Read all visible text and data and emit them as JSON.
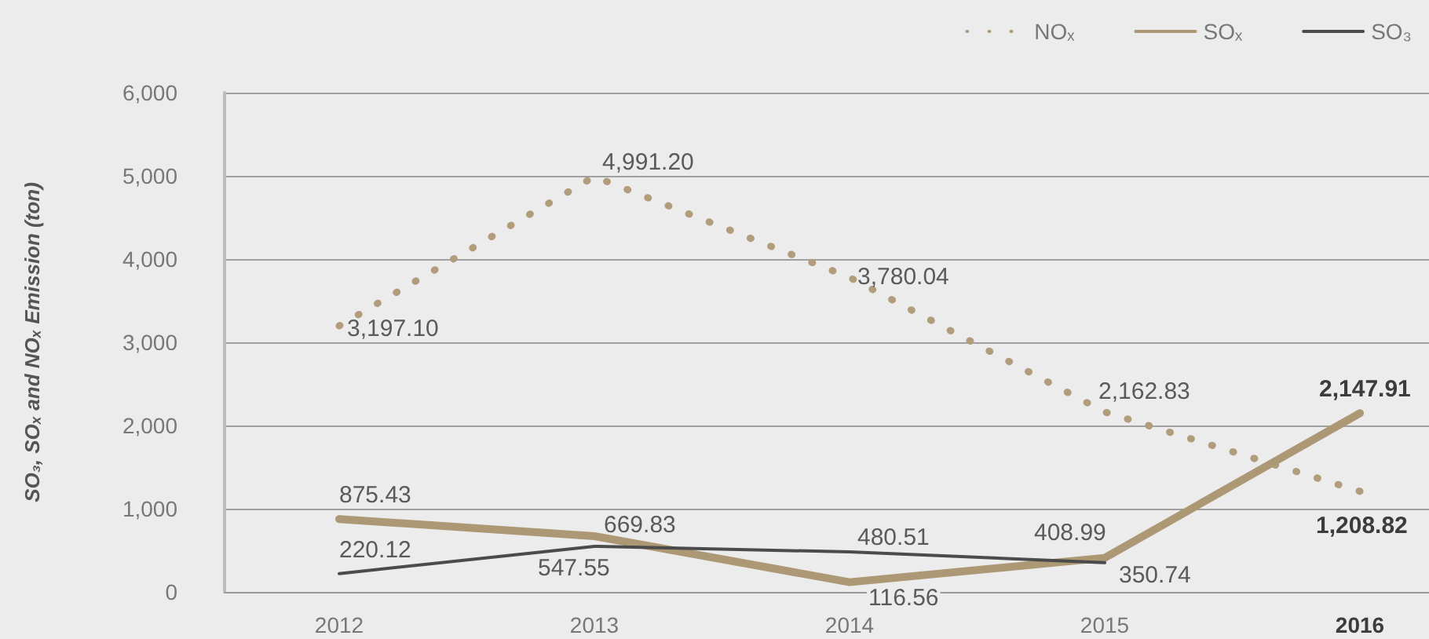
{
  "chart_data": {
    "type": "line",
    "ylabel": "SO₃, SOₓ and NOₓ Emission (ton)",
    "categories": [
      "2012",
      "2013",
      "2014",
      "2015",
      "2016"
    ],
    "series": [
      {
        "name": "NOₓ",
        "color": "#b19c7b",
        "line_style": "dotted",
        "values": [
          3197.1,
          4991.2,
          3780.04,
          2162.83,
          1208.82
        ],
        "value_labels": [
          "3,197.10",
          "4,991.20",
          "3,780.04",
          "2,162.83",
          "1,208.82"
        ]
      },
      {
        "name": "SOₓ",
        "color": "#ad9876",
        "line_style": "solid",
        "values": [
          875.43,
          669.83,
          116.56,
          408.99,
          2147.91
        ],
        "value_labels": [
          "875.43",
          "669.83",
          "116.56",
          "408.99",
          "2,147.91"
        ]
      },
      {
        "name": "SO₃",
        "color": "#4b4b4b",
        "line_style": "solid",
        "values": [
          220.12,
          547.55,
          480.51,
          350.74,
          null
        ],
        "value_labels": [
          "220.12",
          "547.55",
          "480.51",
          "350.74",
          null
        ]
      }
    ],
    "ylim": [
      0,
      6000
    ],
    "yticks": [
      0,
      {
        "value": 1000,
        "label": "1,000"
      },
      {
        "value": 2000,
        "label": "2,000"
      },
      {
        "value": 3000,
        "label": "3,000"
      },
      {
        "value": 4000,
        "label": "4,000"
      },
      {
        "value": 5000,
        "label": "5,000"
      },
      {
        "value": 6000,
        "label": "6,000"
      }
    ],
    "grid": "y",
    "legend": "top right"
  }
}
